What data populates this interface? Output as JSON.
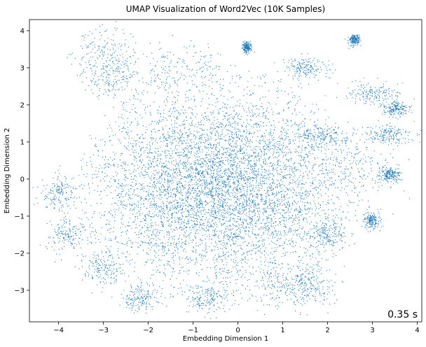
{
  "chart_data": {
    "type": "scatter",
    "title": "UMAP Visualization of Word2Vec (10K Samples)",
    "xlabel": "Embedding Dimension 1",
    "ylabel": "Embedding Dimension 2",
    "xlim": [
      -4.65,
      4.1
    ],
    "ylim": [
      -3.85,
      4.3
    ],
    "x_ticks": [
      -4,
      -3,
      -2,
      -1,
      0,
      1,
      2,
      3,
      4
    ],
    "y_ticks": [
      -3,
      -2,
      -1,
      0,
      1,
      2,
      3,
      4
    ],
    "x_tick_labels": [
      "−4",
      "−3",
      "−2",
      "−1",
      "0",
      "1",
      "2",
      "3",
      "4"
    ],
    "y_tick_labels": [
      "−3",
      "−2",
      "−1",
      "0",
      "1",
      "2",
      "3",
      "4"
    ],
    "grid": false,
    "legend": "none",
    "marker_color": "#1f77b4",
    "marker": "small dots",
    "n_points": 10000,
    "main_cloud": {
      "center": [
        -0.4,
        -0.2
      ],
      "spread": [
        1.45,
        1.25
      ]
    },
    "clusters": [
      {
        "center": [
          -3.0,
          3.4
        ],
        "spread": [
          0.35,
          0.4
        ]
      },
      {
        "center": [
          -2.8,
          2.8
        ],
        "spread": [
          0.35,
          0.3
        ]
      },
      {
        "center": [
          -1.3,
          3.0
        ],
        "spread": [
          0.5,
          0.3
        ]
      },
      {
        "center": [
          0.2,
          3.55
        ],
        "spread": [
          0.05,
          0.07
        ]
      },
      {
        "center": [
          1.5,
          3.0
        ],
        "spread": [
          0.25,
          0.15
        ]
      },
      {
        "center": [
          2.6,
          3.75
        ],
        "spread": [
          0.07,
          0.07
        ]
      },
      {
        "center": [
          1.85,
          1.15
        ],
        "spread": [
          0.3,
          0.15
        ]
      },
      {
        "center": [
          3.0,
          2.3
        ],
        "spread": [
          0.3,
          0.15
        ]
      },
      {
        "center": [
          3.5,
          1.9
        ],
        "spread": [
          0.15,
          0.1
        ]
      },
      {
        "center": [
          3.3,
          1.2
        ],
        "spread": [
          0.3,
          0.12
        ]
      },
      {
        "center": [
          2.8,
          0.3
        ],
        "spread": [
          0.5,
          0.45
        ]
      },
      {
        "center": [
          -4.0,
          -0.4
        ],
        "spread": [
          0.2,
          0.25
        ]
      },
      {
        "center": [
          -3.8,
          -1.5
        ],
        "spread": [
          0.25,
          0.25
        ]
      },
      {
        "center": [
          -3.0,
          -2.4
        ],
        "spread": [
          0.25,
          0.25
        ]
      },
      {
        "center": [
          -2.2,
          -3.2
        ],
        "spread": [
          0.2,
          0.2
        ]
      },
      {
        "center": [
          -0.7,
          -3.2
        ],
        "spread": [
          0.3,
          0.2
        ]
      },
      {
        "center": [
          1.0,
          -2.9
        ],
        "spread": [
          0.4,
          0.3
        ]
      },
      {
        "center": [
          1.6,
          -2.9
        ],
        "spread": [
          0.3,
          0.25
        ]
      },
      {
        "center": [
          2.0,
          -1.5
        ],
        "spread": [
          0.2,
          0.2
        ]
      },
      {
        "center": [
          3.0,
          -1.1
        ],
        "spread": [
          0.1,
          0.12
        ]
      },
      {
        "center": [
          3.4,
          0.1
        ],
        "spread": [
          0.12,
          0.1
        ]
      }
    ]
  },
  "timer_text": "0.35 s"
}
